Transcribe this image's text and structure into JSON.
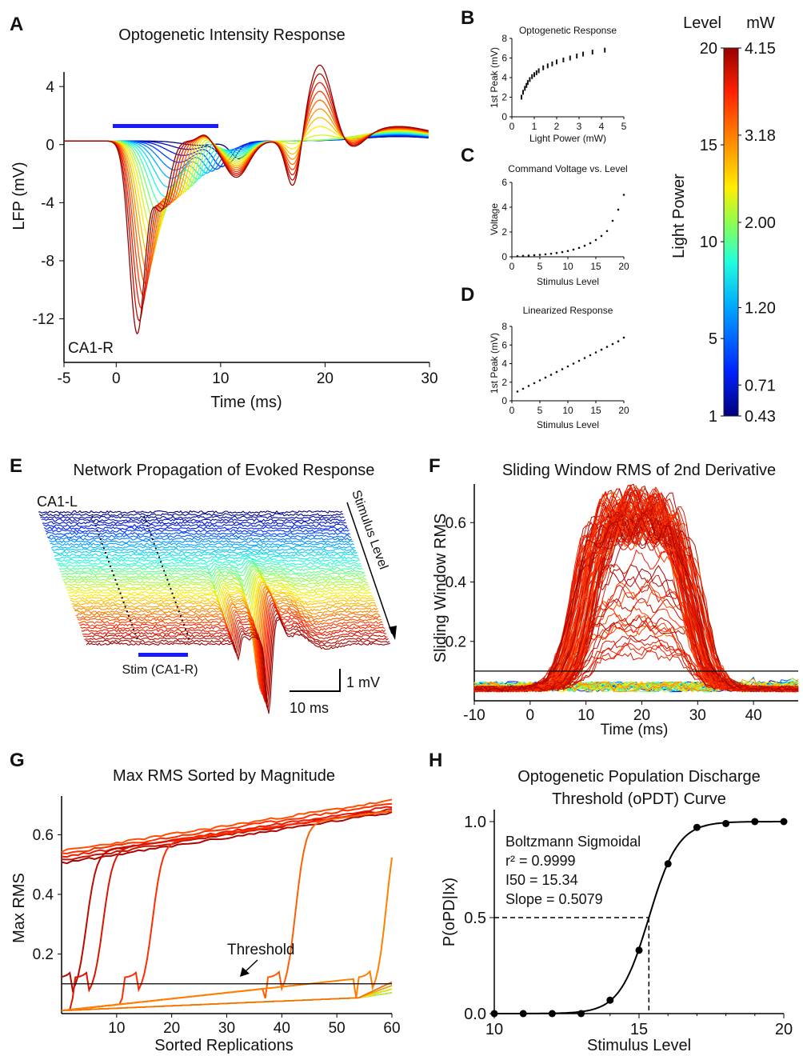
{
  "colors": {
    "stim_bar": "#1a1aff",
    "colormap": [
      "#00007a",
      "#0022ff",
      "#00aaff",
      "#22ffdd",
      "#88ff55",
      "#ffee00",
      "#ff8800",
      "#ff2200",
      "#9a0000"
    ]
  },
  "panels": {
    "A": {
      "letter": "A",
      "title": "Optogenetic Intensity Response",
      "xlabel": "Time (ms)",
      "ylabel": "LFP (mV)",
      "region": "CA1-R",
      "xticks": [
        "-5",
        "0",
        "10",
        "20",
        "30"
      ],
      "yticks": [
        "4",
        "0",
        "-4",
        "-8",
        "-12"
      ]
    },
    "B": {
      "letter": "B",
      "title": "Optogenetic Response",
      "xlabel": "Light Power (mW)",
      "ylabel": "1st Peak (mV)",
      "xticks": [
        "0",
        "1",
        "2",
        "3",
        "4",
        "5"
      ],
      "yticks": [
        "0",
        "2",
        "4",
        "6",
        "8"
      ]
    },
    "C": {
      "letter": "C",
      "title": "Command Voltage vs. Level",
      "xlabel": "Stimulus Level",
      "ylabel": "Voltage",
      "xticks": [
        "0",
        "5",
        "10",
        "15",
        "20"
      ],
      "yticks": [
        "0",
        "2",
        "4",
        "6"
      ]
    },
    "D": {
      "letter": "D",
      "title": "Linearized Response",
      "xlabel": "Stimulus Level",
      "ylabel": "1st Peak (mV)",
      "xticks": [
        "0",
        "5",
        "10",
        "15",
        "20"
      ],
      "yticks": [
        "0",
        "2",
        "4",
        "6",
        "8"
      ]
    },
    "colorbar": {
      "label_level": "Level",
      "label_mw": "mW",
      "title": "Light Power",
      "level_ticks": [
        "20",
        "15",
        "10",
        "5",
        "1"
      ],
      "mw_ticks": [
        "4.15",
        "3.18",
        "2.00",
        "1.20",
        "0.71",
        "0.43"
      ]
    },
    "E": {
      "letter": "E",
      "title": "Network Propagation of Evoked Response",
      "region": "CA1-L",
      "arrow_label": "Stimulus Level",
      "stim_label": "Stim (CA1-R)",
      "scale_v": "1 mV",
      "scale_t": "10 ms"
    },
    "F": {
      "letter": "F",
      "title": "Sliding Window RMS of 2nd Derivative",
      "xlabel": "Time (ms)",
      "ylabel": "Sliding Window RMS",
      "xticks": [
        "-10",
        "0",
        "10",
        "20",
        "30",
        "40"
      ],
      "yticks": [
        "0.6",
        "0.4",
        "0.2"
      ]
    },
    "G": {
      "letter": "G",
      "title": "Max RMS Sorted by Magnitude",
      "xlabel": "Sorted Replications",
      "ylabel": "Max RMS",
      "threshold_label": "Threshold",
      "xticks": [
        "10",
        "20",
        "30",
        "40",
        "50",
        "60"
      ],
      "yticks": [
        "0.6",
        "0.4",
        "0.2"
      ]
    },
    "H": {
      "letter": "H",
      "title_line1": "Optogenetic Population Discharge",
      "title_line2": "Threshold (oPDT) Curve",
      "xlabel": "Stimulus Level",
      "ylabel": "P(oPD|Ix)",
      "fit_name": "Boltzmann Sigmoidal",
      "r2": "r² = 0.9999",
      "i50": "I50 = 15.34",
      "slope": "Slope = 0.5079",
      "xticks": [
        "10",
        "15",
        "20"
      ],
      "yticks": [
        "0.0",
        "0.5",
        "1.0"
      ]
    }
  },
  "chart_data": [
    {
      "id": "A",
      "type": "line",
      "title": "Optogenetic Intensity Response",
      "xlabel": "Time (ms)",
      "ylabel": "LFP (mV)",
      "xlim": [
        -5,
        30
      ],
      "ylim": [
        -15,
        5
      ],
      "stim_window_ms": [
        0,
        10
      ],
      "series_levels": [
        1,
        20
      ],
      "peak_trough_mV": {
        "level_1": -0.3,
        "level_20": -13.2
      },
      "late_peak_mV": 4.8
    },
    {
      "id": "B",
      "type": "scatter",
      "title": "Optogenetic Response",
      "xlabel": "Light Power (mW)",
      "ylabel": "1st Peak (mV)",
      "xlim": [
        0,
        5
      ],
      "ylim": [
        0,
        8
      ],
      "x": [
        0.43,
        0.5,
        0.58,
        0.65,
        0.71,
        0.8,
        0.9,
        1.0,
        1.1,
        1.2,
        1.4,
        1.6,
        1.8,
        2.0,
        2.3,
        2.6,
        2.9,
        3.18,
        3.6,
        4.15
      ],
      "y": [
        2.0,
        2.5,
        2.9,
        3.2,
        3.5,
        3.8,
        4.1,
        4.3,
        4.5,
        4.7,
        5.0,
        5.2,
        5.4,
        5.6,
        5.8,
        6.0,
        6.2,
        6.4,
        6.6,
        6.8
      ]
    },
    {
      "id": "C",
      "type": "scatter",
      "title": "Command Voltage vs. Level",
      "xlabel": "Stimulus Level",
      "ylabel": "Voltage",
      "xlim": [
        0,
        20
      ],
      "ylim": [
        0,
        6
      ],
      "x": [
        1,
        2,
        3,
        4,
        5,
        6,
        7,
        8,
        9,
        10,
        11,
        12,
        13,
        14,
        15,
        16,
        17,
        18,
        19,
        20
      ],
      "y": [
        0.05,
        0.08,
        0.1,
        0.13,
        0.16,
        0.2,
        0.25,
        0.31,
        0.38,
        0.47,
        0.58,
        0.72,
        0.89,
        1.1,
        1.36,
        1.68,
        2.08,
        2.9,
        3.8,
        5.0
      ]
    },
    {
      "id": "D",
      "type": "scatter",
      "title": "Linearized Response",
      "xlabel": "Stimulus Level",
      "ylabel": "1st Peak (mV)",
      "xlim": [
        0,
        20
      ],
      "ylim": [
        0,
        8
      ],
      "x": [
        1,
        2,
        3,
        4,
        5,
        6,
        7,
        8,
        9,
        10,
        11,
        12,
        13,
        14,
        15,
        16,
        17,
        18,
        19,
        20
      ],
      "y": [
        1.0,
        1.3,
        1.6,
        1.9,
        2.2,
        2.5,
        2.8,
        3.1,
        3.4,
        3.7,
        4.0,
        4.3,
        4.6,
        4.9,
        5.2,
        5.5,
        5.8,
        6.1,
        6.4,
        6.8
      ]
    },
    {
      "id": "F",
      "type": "line",
      "title": "Sliding Window RMS of 2nd Derivative",
      "xlabel": "Time (ms)",
      "ylabel": "Sliding Window RMS",
      "xlim": [
        -10,
        48
      ],
      "ylim": [
        0,
        0.73
      ],
      "threshold": 0.1,
      "peak_rms": 0.72
    },
    {
      "id": "G",
      "type": "line",
      "title": "Max RMS Sorted by Magnitude",
      "xlabel": "Sorted Replications",
      "ylabel": "Max RMS",
      "xlim": [
        0,
        60
      ],
      "ylim": [
        0,
        0.73
      ],
      "threshold": 0.1
    },
    {
      "id": "H",
      "type": "scatter",
      "title": "Optogenetic Population Discharge Threshold (oPDT) Curve",
      "xlabel": "Stimulus Level",
      "ylabel": "P(oPD|Ix)",
      "xlim": [
        10,
        20
      ],
      "ylim": [
        0,
        1
      ],
      "x": [
        10,
        11,
        12,
        13,
        14,
        15,
        16,
        17,
        18,
        19,
        20
      ],
      "y": [
        0.0,
        0.0,
        0.0,
        0.0,
        0.07,
        0.33,
        0.78,
        0.97,
        0.99,
        1.0,
        1.0
      ],
      "fit": {
        "model": "Boltzmann Sigmoidal",
        "r2": 0.9999,
        "I50": 15.34,
        "slope": 0.5079
      }
    }
  ]
}
